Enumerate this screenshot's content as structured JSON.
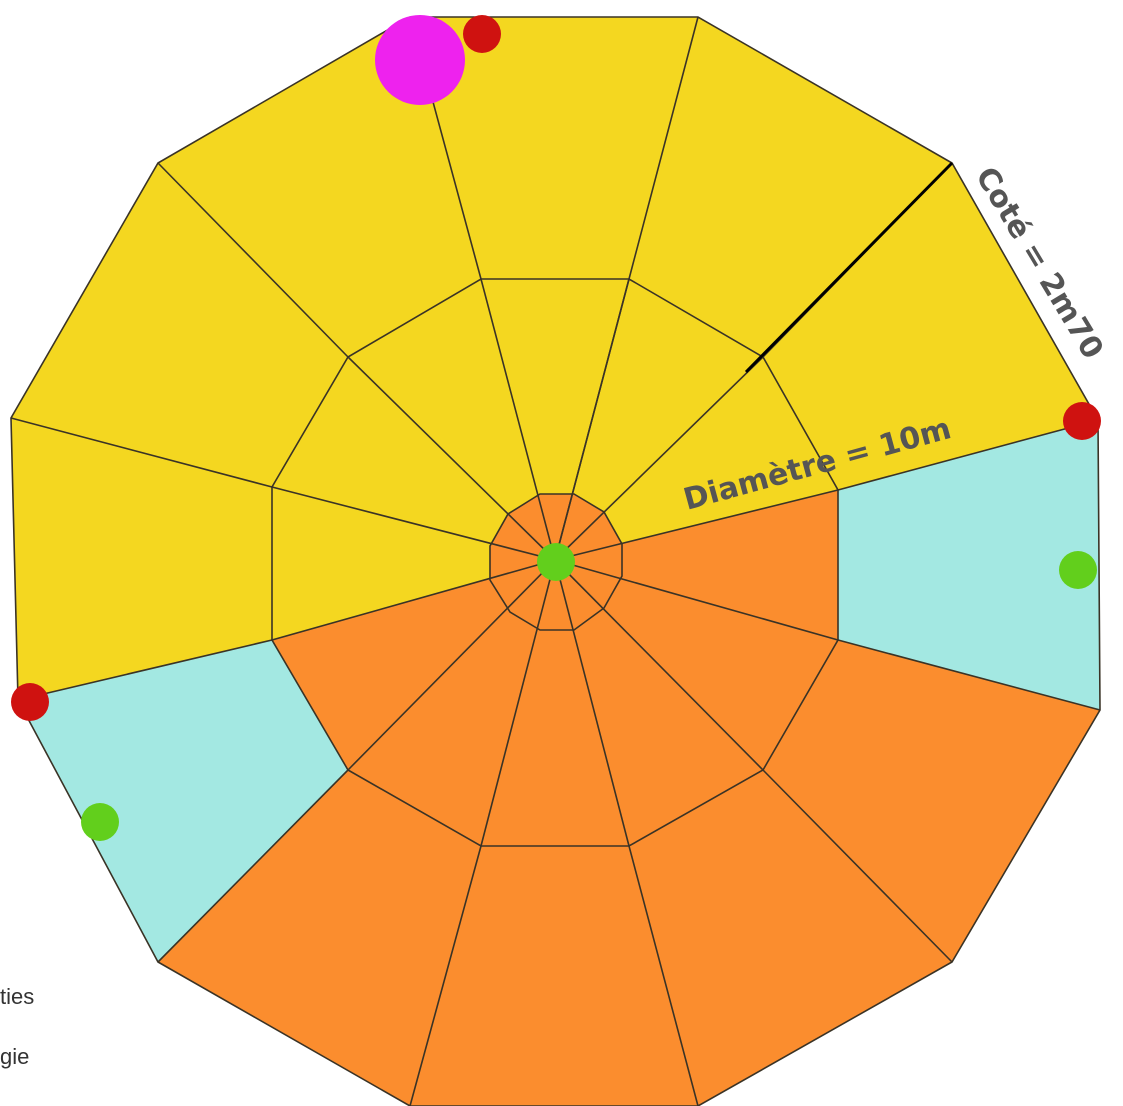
{
  "colors": {
    "yellow": "#f4d720",
    "orange": "#fb8d2e",
    "cyan": "#a3e8e2",
    "outline": "#3a3326",
    "red_marker": "#cf1210",
    "green_marker": "#62cf1c",
    "magenta_marker": "#ee22ee",
    "label": "#555555"
  },
  "labels": {
    "diameter": "Diamètre = 10m",
    "side": "Coté = 2m70"
  },
  "legend": {
    "item1": "ties",
    "item2": "gie"
  }
}
